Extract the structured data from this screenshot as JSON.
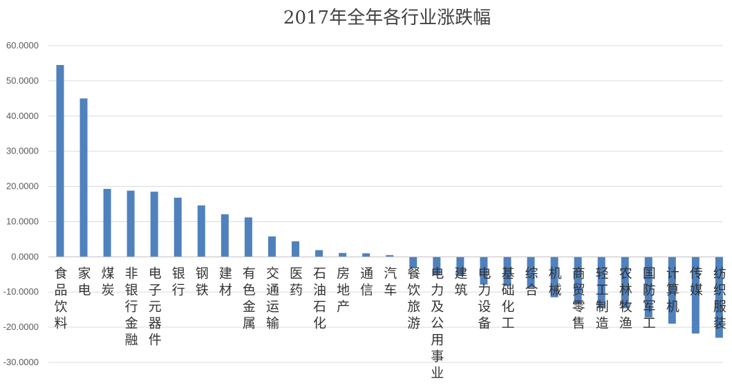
{
  "chart_data": {
    "type": "bar",
    "title": "2017年全年各行业涨跌幅",
    "xlabel": "",
    "ylabel": "",
    "ylim": [
      -30,
      60
    ],
    "yticks": [
      "60.0000",
      "50.0000",
      "40.0000",
      "30.0000",
      "20.0000",
      "10.0000",
      "0.0000",
      "-10.0000",
      "-20.0000",
      "-30.0000"
    ],
    "ytick_values": [
      60,
      50,
      40,
      30,
      20,
      10,
      0,
      -10,
      -20,
      -30
    ],
    "grid": true,
    "legend": "none",
    "bar_color": "#4f81bd",
    "categories": [
      "食品饮料",
      "家电",
      "煤炭",
      "非银行金融",
      "电子元器件",
      "银行",
      "钢铁",
      "建材",
      "有色金属",
      "交通运输",
      "医药",
      "石油石化",
      "房地产",
      "通信",
      "汽车",
      "餐饮旅游",
      "电力及公用事业",
      "建筑",
      "电力设备",
      "基础化工",
      "综合",
      "机械",
      "商贸零售",
      "轻工制造",
      "农林牧渔",
      "国防军工",
      "计算机",
      "传媒",
      "纺织服装"
    ],
    "values": [
      54.5,
      45.0,
      19.3,
      18.8,
      18.5,
      16.8,
      14.6,
      12.1,
      11.2,
      5.8,
      4.4,
      1.9,
      1.1,
      1.0,
      0.5,
      -3.2,
      -5.2,
      -5.4,
      -7.9,
      -8.3,
      -8.7,
      -11.5,
      -13.5,
      -14.6,
      -14.6,
      -17.2,
      -19.0,
      -21.8,
      -23.0
    ]
  }
}
